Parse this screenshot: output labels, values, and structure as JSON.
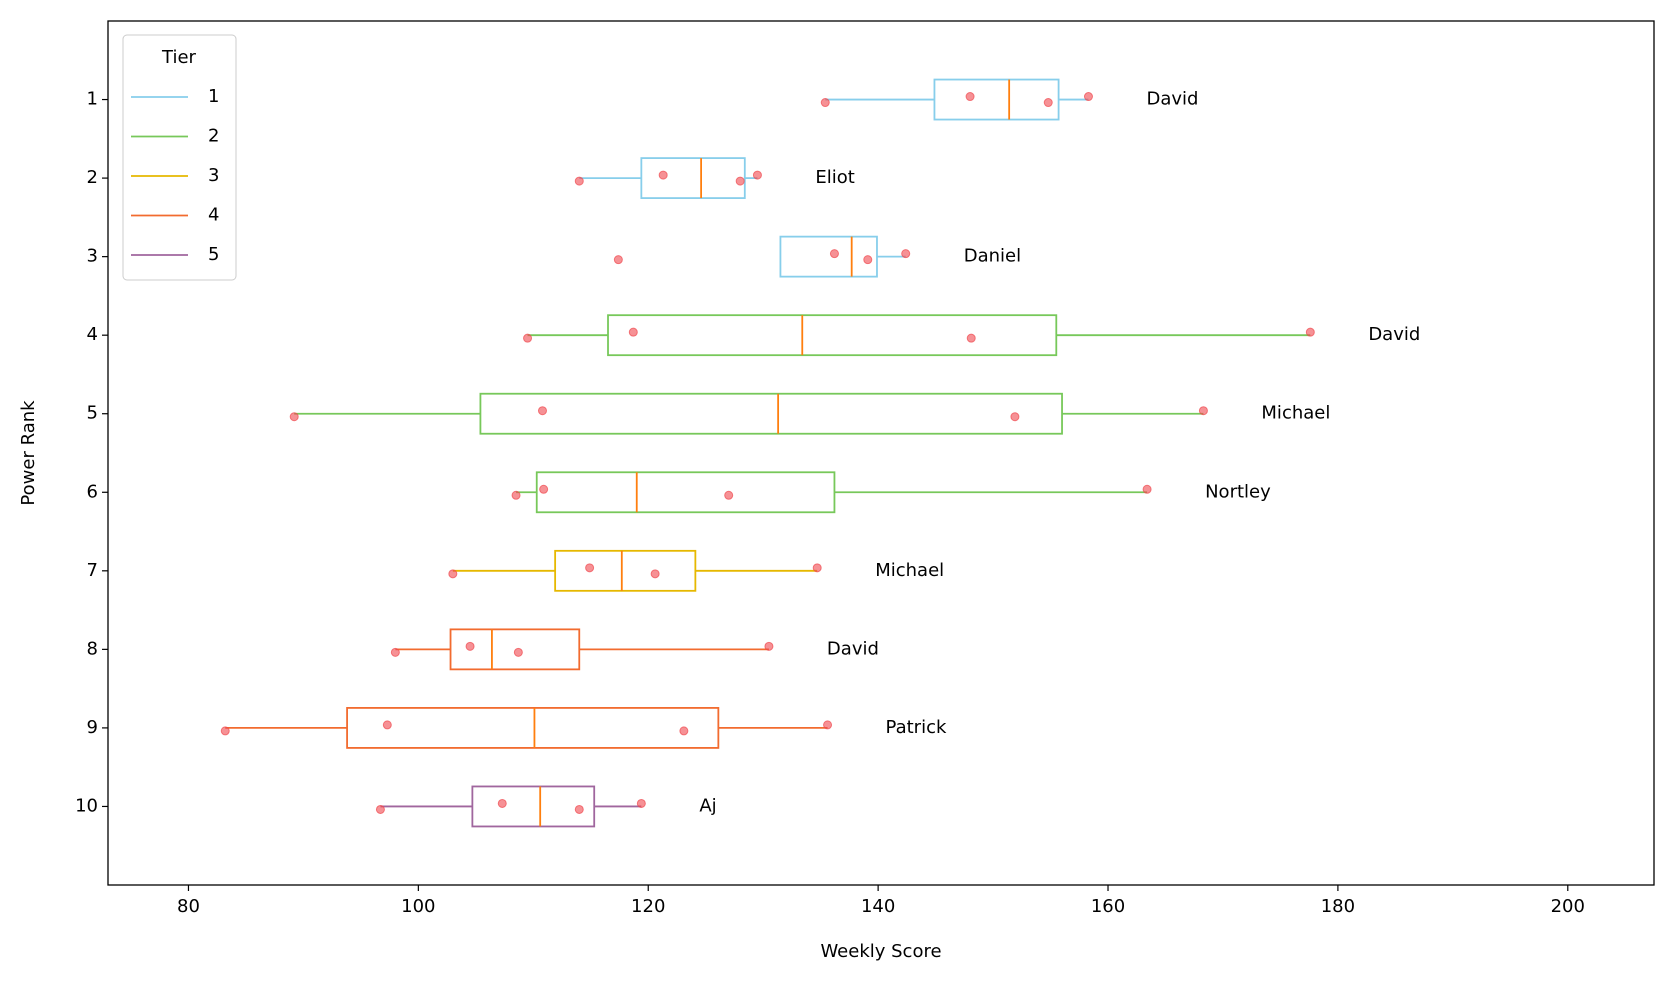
{
  "chart_data": {
    "type": "box",
    "x_label": "Weekly Score",
    "y_label": "Power Rank",
    "xlim": [
      73,
      207.5
    ],
    "xticks": [
      80,
      100,
      120,
      140,
      160,
      180,
      200
    ],
    "ylim": [
      11,
      0
    ],
    "yticks": [
      1,
      2,
      3,
      4,
      5,
      6,
      7,
      8,
      9,
      10
    ],
    "median_color": "#ff7f0e",
    "point_color": "#f0484e",
    "legend": {
      "title": "Tier",
      "position": "upper left",
      "entries": [
        {
          "label": 1,
          "color": "#87ceeb"
        },
        {
          "label": 2,
          "color": "#77c85a"
        },
        {
          "label": 3,
          "color": "#e6b800"
        },
        {
          "label": 4,
          "color": "#f26b2f"
        },
        {
          "label": 5,
          "color": "#a0669e"
        }
      ]
    },
    "boxes": [
      {
        "name": "David",
        "rank": 1,
        "tier": 1,
        "whisker_low": 135.4,
        "q1": 144.9,
        "median": 151.4,
        "q3": 155.7,
        "whisker_high": 158.3,
        "points": [
          135.4,
          148.0,
          154.8,
          158.3
        ]
      },
      {
        "name": "Eliot",
        "rank": 2,
        "tier": 1,
        "whisker_low": 114.0,
        "q1": 119.4,
        "median": 124.6,
        "q3": 128.4,
        "whisker_high": 129.5,
        "points": [
          114.0,
          121.3,
          128.0,
          129.5
        ]
      },
      {
        "name": "Daniel",
        "rank": 3,
        "tier": 1,
        "whisker_low": 131.5,
        "q1": 131.5,
        "median": 137.7,
        "q3": 139.9,
        "whisker_high": 142.4,
        "points": [
          117.4,
          136.2,
          139.1,
          142.4
        ]
      },
      {
        "name": "David",
        "rank": 4,
        "tier": 2,
        "whisker_low": 109.5,
        "q1": 116.5,
        "median": 133.4,
        "q3": 155.5,
        "whisker_high": 177.6,
        "points": [
          109.5,
          118.7,
          148.1,
          177.6
        ]
      },
      {
        "name": "Michael",
        "rank": 5,
        "tier": 2,
        "whisker_low": 89.2,
        "q1": 105.4,
        "median": 131.3,
        "q3": 156.0,
        "whisker_high": 168.3,
        "points": [
          89.2,
          110.8,
          151.9,
          168.3
        ]
      },
      {
        "name": "Nortley",
        "rank": 6,
        "tier": 2,
        "whisker_low": 108.5,
        "q1": 110.3,
        "median": 119.0,
        "q3": 136.2,
        "whisker_high": 163.4,
        "points": [
          108.5,
          110.9,
          127.0,
          163.4
        ]
      },
      {
        "name": "Michael",
        "rank": 7,
        "tier": 3,
        "whisker_low": 103.0,
        "q1": 111.9,
        "median": 117.7,
        "q3": 124.1,
        "whisker_high": 134.7,
        "points": [
          103.0,
          114.9,
          120.6,
          134.7
        ]
      },
      {
        "name": "David",
        "rank": 8,
        "tier": 4,
        "whisker_low": 98.0,
        "q1": 102.8,
        "median": 106.4,
        "q3": 114.0,
        "whisker_high": 130.5,
        "points": [
          98.0,
          104.5,
          108.7,
          130.5
        ]
      },
      {
        "name": "Patrick",
        "rank": 9,
        "tier": 4,
        "whisker_low": 83.2,
        "q1": 93.8,
        "median": 110.1,
        "q3": 126.1,
        "whisker_high": 135.6,
        "points": [
          83.2,
          97.3,
          123.1,
          135.6
        ]
      },
      {
        "name": "Aj",
        "rank": 10,
        "tier": 5,
        "whisker_low": 96.7,
        "q1": 104.7,
        "median": 110.6,
        "q3": 115.3,
        "whisker_high": 119.4,
        "points": [
          96.7,
          107.3,
          114.0,
          119.4
        ]
      }
    ]
  }
}
